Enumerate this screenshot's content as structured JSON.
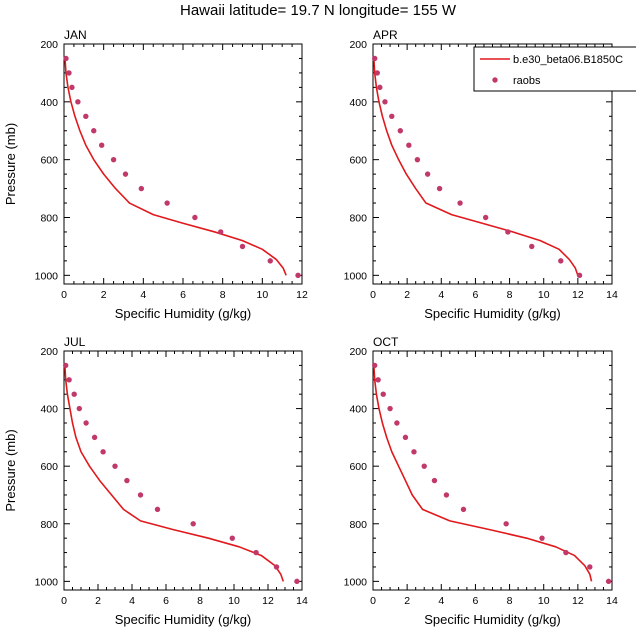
{
  "title": "Hawaii  latitude= 19.7 N longitude= 155 W",
  "legend": {
    "model_label": "b.e30_beta06.B1850C",
    "obs_label": "raobs"
  },
  "colors": {
    "model": "#e0191c",
    "obs": "#c0396a",
    "axes": "#000000"
  },
  "chart_data": [
    {
      "type": "line",
      "panel": "JAN",
      "xlabel": "Specific Humidity (g/kg)",
      "ylabel": "Pressure (mb)",
      "xlim": [
        0,
        12
      ],
      "ylim": [
        200,
        1030
      ],
      "y_inverted": true,
      "xticks": [
        0,
        2,
        4,
        6,
        8,
        10,
        12
      ],
      "yticks": [
        200,
        400,
        600,
        800,
        1000
      ],
      "series": [
        {
          "name": "b.e30_beta06.B1850C",
          "kind": "line",
          "x": [
            0.05,
            0.1,
            0.2,
            0.35,
            0.55,
            0.8,
            1.1,
            1.5,
            2.0,
            2.6,
            3.3,
            4.5,
            6.0,
            7.6,
            9.0,
            10.0,
            10.7,
            11.05,
            11.2
          ],
          "y": [
            250,
            300,
            350,
            400,
            450,
            500,
            550,
            600,
            650,
            700,
            750,
            790,
            820,
            850,
            880,
            910,
            945,
            975,
            1000
          ]
        },
        {
          "name": "raobs",
          "kind": "points",
          "x": [
            0.1,
            0.25,
            0.4,
            0.7,
            1.1,
            1.5,
            1.9,
            2.5,
            3.1,
            3.9,
            5.2,
            6.6,
            7.9,
            9.0,
            10.4,
            11.8
          ],
          "y": [
            250,
            300,
            350,
            400,
            450,
            500,
            550,
            600,
            650,
            700,
            750,
            800,
            850,
            900,
            950,
            1000
          ]
        }
      ]
    },
    {
      "type": "line",
      "panel": "APR",
      "xlabel": "Specific Humidity (g/kg)",
      "ylabel": "",
      "xlim": [
        0,
        14
      ],
      "ylim": [
        200,
        1030
      ],
      "y_inverted": true,
      "xticks": [
        0,
        2,
        4,
        6,
        8,
        10,
        12,
        14
      ],
      "yticks": [
        200,
        400,
        600,
        800,
        1000
      ],
      "series": [
        {
          "name": "b.e30_beta06.B1850C",
          "kind": "line",
          "x": [
            0.05,
            0.1,
            0.2,
            0.35,
            0.55,
            0.8,
            1.1,
            1.5,
            1.95,
            2.5,
            3.1,
            4.6,
            6.4,
            8.2,
            9.8,
            10.9,
            11.5,
            11.85,
            12.0
          ],
          "y": [
            250,
            300,
            350,
            400,
            450,
            500,
            550,
            600,
            650,
            700,
            750,
            790,
            820,
            850,
            880,
            910,
            945,
            975,
            1000
          ]
        },
        {
          "name": "raobs",
          "kind": "points",
          "x": [
            0.1,
            0.25,
            0.4,
            0.7,
            1.1,
            1.6,
            2.1,
            2.6,
            3.2,
            3.9,
            5.1,
            6.6,
            7.9,
            9.3,
            11.0,
            12.1
          ],
          "y": [
            250,
            300,
            350,
            400,
            450,
            500,
            550,
            600,
            650,
            700,
            750,
            800,
            850,
            900,
            950,
            1000
          ]
        }
      ]
    },
    {
      "type": "line",
      "panel": "JUL",
      "xlabel": "Specific Humidity (g/kg)",
      "ylabel": "Pressure (mb)",
      "xlim": [
        0,
        14
      ],
      "ylim": [
        200,
        1030
      ],
      "y_inverted": true,
      "xticks": [
        0,
        2,
        4,
        6,
        8,
        10,
        12,
        14
      ],
      "yticks": [
        200,
        400,
        600,
        800,
        1000
      ],
      "series": [
        {
          "name": "b.e30_beta06.B1850C",
          "kind": "line",
          "x": [
            0.05,
            0.1,
            0.2,
            0.35,
            0.5,
            0.7,
            1.0,
            1.5,
            2.1,
            2.8,
            3.5,
            4.5,
            6.4,
            8.5,
            10.3,
            11.6,
            12.4,
            12.75,
            12.9
          ],
          "y": [
            250,
            300,
            350,
            400,
            450,
            500,
            550,
            600,
            650,
            700,
            750,
            790,
            820,
            850,
            880,
            910,
            945,
            975,
            1000
          ]
        },
        {
          "name": "raobs",
          "kind": "points",
          "x": [
            0.1,
            0.3,
            0.6,
            0.9,
            1.3,
            1.8,
            2.3,
            3.0,
            3.7,
            4.5,
            5.5,
            7.6,
            9.9,
            11.3,
            12.5,
            13.7
          ],
          "y": [
            250,
            300,
            350,
            400,
            450,
            500,
            550,
            600,
            650,
            700,
            750,
            800,
            850,
            900,
            950,
            1000
          ]
        }
      ]
    },
    {
      "type": "line",
      "panel": "OCT",
      "xlabel": "Specific Humidity (g/kg)",
      "ylabel": "",
      "xlim": [
        0,
        14
      ],
      "ylim": [
        200,
        1030
      ],
      "y_inverted": true,
      "xticks": [
        0,
        2,
        4,
        6,
        8,
        10,
        12,
        14
      ],
      "yticks": [
        200,
        400,
        600,
        800,
        1000
      ],
      "series": [
        {
          "name": "b.e30_beta06.B1850C",
          "kind": "line",
          "x": [
            0.05,
            0.1,
            0.2,
            0.35,
            0.55,
            0.8,
            1.1,
            1.5,
            1.9,
            2.3,
            2.9,
            4.5,
            6.8,
            9.0,
            10.7,
            11.8,
            12.4,
            12.7,
            12.8
          ],
          "y": [
            250,
            300,
            350,
            400,
            450,
            500,
            550,
            600,
            650,
            700,
            750,
            790,
            820,
            850,
            880,
            910,
            945,
            975,
            1000
          ]
        },
        {
          "name": "raobs",
          "kind": "points",
          "x": [
            0.1,
            0.3,
            0.6,
            1.0,
            1.4,
            1.9,
            2.4,
            3.0,
            3.6,
            4.3,
            5.3,
            7.8,
            9.9,
            11.3,
            12.7,
            13.8
          ],
          "y": [
            250,
            300,
            350,
            400,
            450,
            500,
            550,
            600,
            650,
            700,
            750,
            800,
            850,
            900,
            950,
            1000
          ]
        }
      ]
    }
  ]
}
